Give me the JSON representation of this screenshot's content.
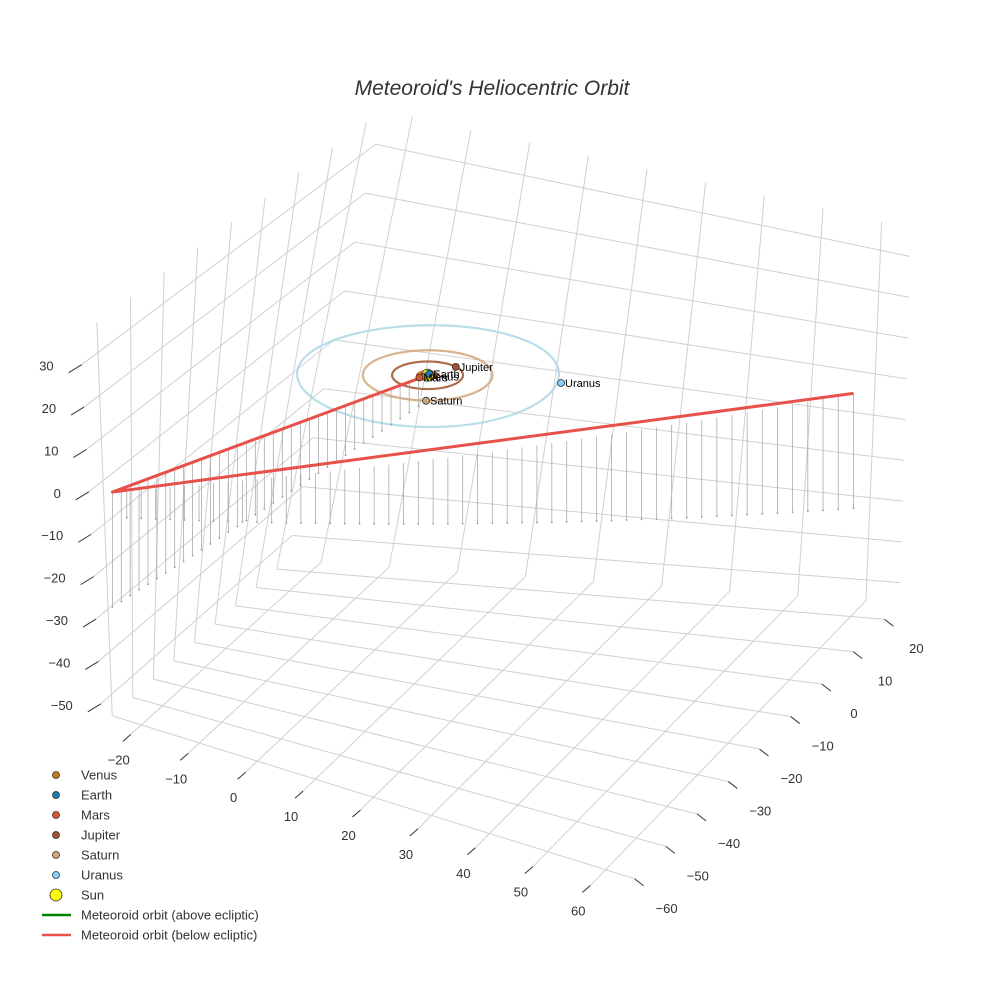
{
  "chart_data": {
    "type": "scatter3d",
    "title": "Meteoroid's Heliocentric Orbit",
    "axes": {
      "x": {
        "range": [
          -25,
          65
        ],
        "ticks": [
          -20,
          -10,
          0,
          10,
          20,
          30,
          40,
          50,
          60
        ]
      },
      "y": {
        "range": [
          -65,
          25
        ],
        "ticks": [
          -60,
          -50,
          -40,
          -30,
          -20,
          -10,
          0,
          10,
          20
        ]
      },
      "z": {
        "range": [
          -55,
          37
        ],
        "ticks": [
          -50,
          -40,
          -30,
          -20,
          -10,
          0,
          10,
          20,
          30
        ]
      },
      "grid": true
    },
    "sun": {
      "name": "Sun",
      "x": 0,
      "y": 0,
      "z": 0,
      "color": "#ffff00"
    },
    "planets": [
      {
        "name": "Venus",
        "x": -0.2,
        "y": -0.7,
        "z": 0,
        "orbit_radius": 0.72,
        "color": "#c8781e",
        "label": "Venus"
      },
      {
        "name": "Earth",
        "x": 0.0,
        "y": 0.6,
        "z": 0,
        "orbit_radius": 1.0,
        "color": "#1f77b4",
        "label": "Earth"
      },
      {
        "name": "Mars",
        "x": -0.7,
        "y": -1.3,
        "z": 0,
        "orbit_radius": 1.52,
        "color": "#d9532c",
        "label": "Mars"
      },
      {
        "name": "Jupiter",
        "x": 2.4,
        "y": 4.6,
        "z": 0,
        "orbit_radius": 5.2,
        "color": "#a0522d",
        "label": "Jupiter"
      },
      {
        "name": "Saturn",
        "x": 3.9,
        "y": -8.7,
        "z": 0,
        "orbit_radius": 9.5,
        "color": "#d2a679",
        "label": "Saturn"
      },
      {
        "name": "Uranus",
        "x": 19.0,
        "y": 5.5,
        "z": 0,
        "orbit_radius": 19.2,
        "color": "#87cefa",
        "label": "Uranus"
      }
    ],
    "orbit_colors": {
      "Venus": "#c8781e",
      "Earth": "#1f77b4",
      "Mars": "#d9532c",
      "Jupiter": "#a0522d",
      "Saturn": "#d2a679",
      "Uranus": "#add8e6"
    },
    "meteoroid_above": {
      "name": "Meteoroid orbit (above ecliptic)",
      "color": "#008000",
      "points": []
    },
    "meteoroid_below": {
      "name": "Meteoroid orbit (below ecliptic)",
      "color": "#e8504a",
      "points": [
        {
          "x": 0,
          "y": 0,
          "z": 0
        },
        {
          "x": -22,
          "y": -63,
          "z": 0
        },
        {
          "x": 60,
          "y": 18,
          "z": 0
        }
      ]
    },
    "legend": {
      "placement": "bottom-left",
      "entries": [
        {
          "label": "Venus",
          "kind": "marker",
          "color": "#c8781e"
        },
        {
          "label": "Earth",
          "kind": "marker",
          "color": "#1f77b4"
        },
        {
          "label": "Mars",
          "kind": "marker",
          "color": "#d9532c"
        },
        {
          "label": "Jupiter",
          "kind": "marker",
          "color": "#a0522d"
        },
        {
          "label": "Saturn",
          "kind": "marker",
          "color": "#d2a679"
        },
        {
          "label": "Uranus",
          "kind": "marker",
          "color": "#87cefa"
        },
        {
          "label": "Sun",
          "kind": "marker-large",
          "color": "#ffff00"
        },
        {
          "label": "Meteoroid orbit (above ecliptic)",
          "kind": "line",
          "color": "#008000"
        },
        {
          "label": "Meteoroid orbit (below ecliptic)",
          "kind": "line",
          "color": "#e8504a"
        }
      ]
    }
  }
}
